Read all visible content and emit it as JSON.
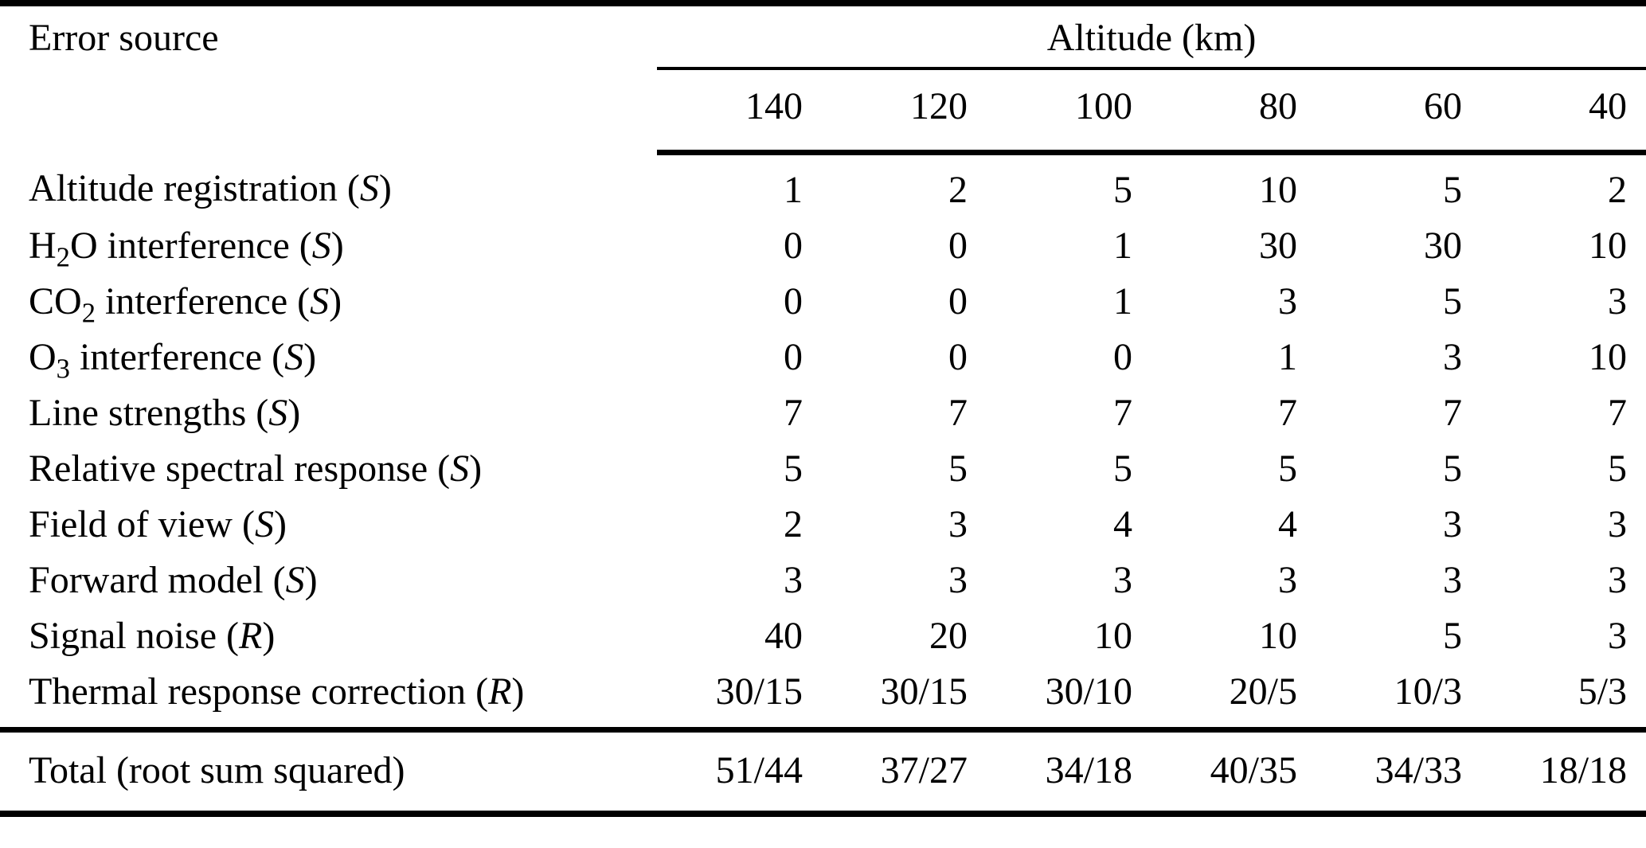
{
  "page": {
    "background_color": "#ffffff",
    "text_color": "#000000"
  },
  "table": {
    "row_header": "Error source",
    "column_group_header": "Altitude (km)",
    "columns": [
      "140",
      "120",
      "100",
      "80",
      "60",
      "40"
    ],
    "rows": [
      {
        "label_pre": "Altitude registration",
        "label_sub": "",
        "label_post": "",
        "qualifier": "S",
        "values": [
          "1",
          "2",
          "5",
          "10",
          "5",
          "2"
        ]
      },
      {
        "label_pre": "H",
        "label_sub": "2",
        "label_post": "O interference",
        "qualifier": "S",
        "values": [
          "0",
          "0",
          "1",
          "30",
          "30",
          "10"
        ]
      },
      {
        "label_pre": "CO",
        "label_sub": "2",
        "label_post": " interference",
        "qualifier": "S",
        "values": [
          "0",
          "0",
          "1",
          "3",
          "5",
          "3"
        ]
      },
      {
        "label_pre": "O",
        "label_sub": "3",
        "label_post": " interference",
        "qualifier": "S",
        "values": [
          "0",
          "0",
          "0",
          "1",
          "3",
          "10"
        ]
      },
      {
        "label_pre": "Line strengths",
        "label_sub": "",
        "label_post": "",
        "qualifier": "S",
        "values": [
          "7",
          "7",
          "7",
          "7",
          "7",
          "7"
        ]
      },
      {
        "label_pre": "Relative spectral response",
        "label_sub": "",
        "label_post": "",
        "qualifier": "S",
        "values": [
          "5",
          "5",
          "5",
          "5",
          "5",
          "5"
        ]
      },
      {
        "label_pre": "Field of view",
        "label_sub": "",
        "label_post": "",
        "qualifier": "S",
        "values": [
          "2",
          "3",
          "4",
          "4",
          "3",
          "3"
        ]
      },
      {
        "label_pre": "Forward model",
        "label_sub": "",
        "label_post": "",
        "qualifier": "S",
        "values": [
          "3",
          "3",
          "3",
          "3",
          "3",
          "3"
        ]
      },
      {
        "label_pre": "Signal noise",
        "label_sub": "",
        "label_post": "",
        "qualifier": "R",
        "values": [
          "40",
          "20",
          "10",
          "10",
          "5",
          "3"
        ]
      },
      {
        "label_pre": "Thermal response correction",
        "label_sub": "",
        "label_post": "",
        "qualifier": "R",
        "values": [
          "30/15",
          "30/15",
          "30/10",
          "20/5",
          "10/3",
          "5/3"
        ]
      }
    ],
    "total_row": {
      "label": "Total (root sum squared)",
      "values": [
        "51/44",
        "37/27",
        "34/18",
        "40/35",
        "34/33",
        "18/18"
      ]
    }
  }
}
